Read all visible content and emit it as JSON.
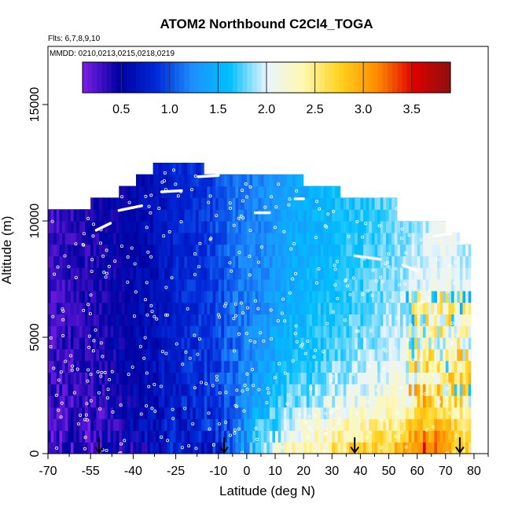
{
  "chart_data": {
    "type": "heatmap",
    "title": "ATOM2 Northbound C2Cl4_TOGA",
    "flights_note": "Flts: 6,7,8,9,10",
    "dates_note": "MMDD: 0210,0213,0215,0218,0219",
    "xlabel": "Latitude (deg N)",
    "ylabel": "Altitude (m)",
    "xlim": [
      -70,
      85
    ],
    "ylim": [
      0,
      17500
    ],
    "x_tick_values": [
      -70,
      -55,
      -40,
      -25,
      -10,
      0,
      10,
      20,
      30,
      40,
      50,
      60,
      70,
      80
    ],
    "x_tick_labels": [
      "-70",
      "-55",
      "-40",
      "-25",
      "-10",
      "0",
      "10",
      "20",
      "30",
      "40",
      "50",
      "60",
      "70",
      "80"
    ],
    "x_minor_ticks": [
      -62.5,
      -47.5,
      -32.5,
      -17.5,
      -5,
      5,
      15,
      25,
      35,
      45,
      55,
      65,
      75,
      85
    ],
    "y_tick_values": [
      0,
      5000,
      10000,
      15000
    ],
    "y_tick_labels": [
      "0",
      "5000",
      "10000",
      "15000"
    ],
    "colorbar": {
      "range": [
        0.1,
        3.9
      ],
      "tick_values": [
        0.5,
        1.0,
        1.5,
        2.0,
        2.5,
        3.0,
        3.5
      ],
      "tick_labels": [
        "0.5",
        "1.0",
        "1.5",
        "2.0",
        "2.5",
        "3.0",
        "3.5"
      ],
      "colors": [
        "#7d1fe8",
        "#0000a0",
        "#0028d8",
        "#1e90ff",
        "#00bfff",
        "#e8f4ff",
        "#fff8b0",
        "#ffd21e",
        "#ff8c00",
        "#e00000",
        "#8b1010"
      ]
    },
    "altitude_envelope": [
      {
        "lat": -70,
        "top": 10500
      },
      {
        "lat": -55,
        "top": 10500
      },
      {
        "lat": -55,
        "top": 11000
      },
      {
        "lat": -45,
        "top": 11000
      },
      {
        "lat": -45,
        "top": 11500
      },
      {
        "lat": -39,
        "top": 11500
      },
      {
        "lat": -39,
        "top": 12000
      },
      {
        "lat": -33,
        "top": 12000
      },
      {
        "lat": -33,
        "top": 12500
      },
      {
        "lat": -15,
        "top": 12500
      },
      {
        "lat": -15,
        "top": 12000
      },
      {
        "lat": 20,
        "top": 12000
      },
      {
        "lat": 20,
        "top": 11500
      },
      {
        "lat": 33,
        "top": 11500
      },
      {
        "lat": 33,
        "top": 11000
      },
      {
        "lat": 53,
        "top": 11000
      },
      {
        "lat": 53,
        "top": 10000
      },
      {
        "lat": 70,
        "top": 10000
      },
      {
        "lat": 70,
        "top": 9500
      },
      {
        "lat": 75,
        "top": 9500
      },
      {
        "lat": 75,
        "top": 9000
      },
      {
        "lat": 79,
        "top": 9000
      },
      {
        "lat": 79,
        "top": 0
      },
      {
        "lat": -70,
        "top": 0
      }
    ],
    "field_profile": [
      {
        "lat": -70,
        "surface": 0.2,
        "upper": 0.3
      },
      {
        "lat": -55,
        "surface": 0.25,
        "upper": 0.4
      },
      {
        "lat": -45,
        "surface": 0.4,
        "upper": 0.5
      },
      {
        "lat": -35,
        "surface": 0.6,
        "upper": 0.6
      },
      {
        "lat": -25,
        "surface": 0.7,
        "upper": 0.8
      },
      {
        "lat": -15,
        "surface": 0.75,
        "upper": 0.9
      },
      {
        "lat": -5,
        "surface": 1.0,
        "upper": 1.1
      },
      {
        "lat": 5,
        "surface": 1.9,
        "upper": 1.2
      },
      {
        "lat": 15,
        "surface": 2.3,
        "upper": 1.4
      },
      {
        "lat": 25,
        "surface": 2.5,
        "upper": 1.5
      },
      {
        "lat": 35,
        "surface": 2.7,
        "upper": 1.6
      },
      {
        "lat": 45,
        "surface": 2.8,
        "upper": 1.7
      },
      {
        "lat": 55,
        "surface": 3.0,
        "upper": 1.8
      },
      {
        "lat": 63,
        "surface": 3.6,
        "upper": 1.9
      },
      {
        "lat": 70,
        "surface": 3.2,
        "upper": 2.0
      },
      {
        "lat": 79,
        "surface": 2.8,
        "upper": 1.9
      }
    ],
    "flight_track_segments": [
      {
        "lat": [
          -53,
          -48
        ],
        "alt": [
          9600,
          9900
        ]
      },
      {
        "lat": [
          -45,
          -37
        ],
        "alt": [
          10450,
          10650
        ]
      },
      {
        "lat": [
          -30,
          -23
        ],
        "alt": [
          11250,
          11300
        ]
      },
      {
        "lat": [
          -17,
          -10
        ],
        "alt": [
          11900,
          11950
        ]
      },
      {
        "lat": [
          3,
          8
        ],
        "alt": [
          10350,
          10350
        ]
      },
      {
        "lat": [
          17,
          20
        ],
        "alt": [
          10950,
          10950
        ]
      },
      {
        "lat": [
          38,
          47
        ],
        "alt": [
          8500,
          8350
        ]
      },
      {
        "lat": [
          55,
          60
        ],
        "alt": [
          8100,
          7850
        ]
      },
      {
        "lat": [
          66,
          72
        ],
        "alt": [
          9350,
          9450
        ]
      }
    ],
    "arrow_markers_lat": [
      -52,
      -8,
      38,
      75
    ]
  }
}
